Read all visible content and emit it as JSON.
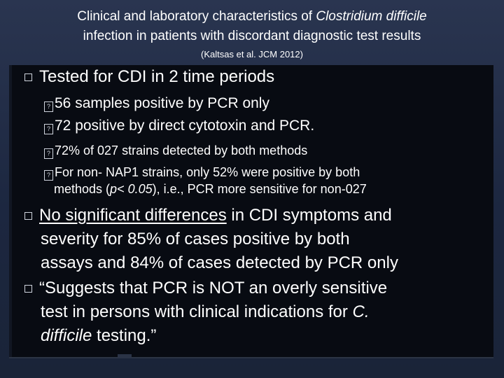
{
  "title": {
    "line1_pre": "Clinical and laboratory characteristics of ",
    "line1_em": "Clostridium difficile",
    "line2": "infection in patients with discordant diagnostic test results",
    "citation": "(Kaltsas et al. JCM 2012)"
  },
  "bullets": {
    "tested": "Tested for CDI in 2 time periods",
    "sub1": "56 samples positive by PCR only",
    "sub2": "72 positive by direct cytotoxin and PCR.",
    "sub3": "72% of 027 strains detected by both methods",
    "sub4_line1": "For non- NAP1 strains, only 52% were positive by both",
    "sub4_line2_pre": "methods (",
    "sub4_line2_p": "p< 0.05",
    "sub4_line2_post": "), i.e., PCR more sensitive for non-027",
    "nosig_underlined": "No significant differences",
    "nosig_rest1": " in CDI symptoms and",
    "nosig_line2": "severity for 85% of cases positive by both",
    "nosig_line3": "assays and 84% of cases detected by PCR only",
    "quote_line1": "“Suggests that PCR is NOT an overly sensitive",
    "quote_line2_pre": "test in persons with clinical indications for ",
    "quote_line2_em": "C.",
    "quote_line3_em": "difficile",
    "quote_line3_post": " testing.”"
  },
  "colors": {
    "background": "#1f2a3f",
    "panel": "#080b12",
    "text": "#ffffff"
  }
}
